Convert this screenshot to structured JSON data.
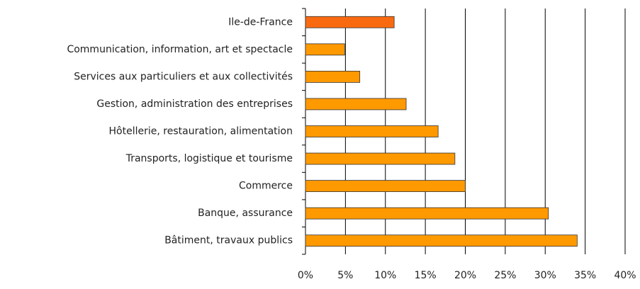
{
  "chart_data": {
    "type": "bar",
    "orientation": "horizontal",
    "categories": [
      "Ile-de-France",
      "Communication, information, art et spectacle",
      "Services aux particuliers et aux collectivités",
      "Gestion, administration des entreprises",
      "Hôtellerie, restauration, alimentation",
      "Transports, logistique et tourisme",
      "Commerce",
      "Banque, assurance",
      "Bâtiment, travaux publics"
    ],
    "values": [
      11.1,
      4.9,
      6.8,
      12.6,
      16.6,
      18.7,
      20,
      30.4,
      34
    ],
    "colors": [
      "#f96a10",
      "#ff9900",
      "#ff9900",
      "#ff9900",
      "#ff9900",
      "#ff9900",
      "#ff9900",
      "#ff9900",
      "#ff9900"
    ],
    "xlim": [
      0,
      40
    ],
    "xticks": [
      {
        "value": 0,
        "label": "0%"
      },
      {
        "value": 5,
        "label": "5%"
      },
      {
        "value": 10,
        "label": "10%"
      },
      {
        "value": 15,
        "label": "15%"
      },
      {
        "value": 20,
        "label": "20%"
      },
      {
        "value": 25,
        "label": "25%"
      },
      {
        "value": 30,
        "label": "30%"
      },
      {
        "value": 35,
        "label": "35%"
      },
      {
        "value": 40,
        "label": "40%"
      }
    ],
    "grid": true
  }
}
